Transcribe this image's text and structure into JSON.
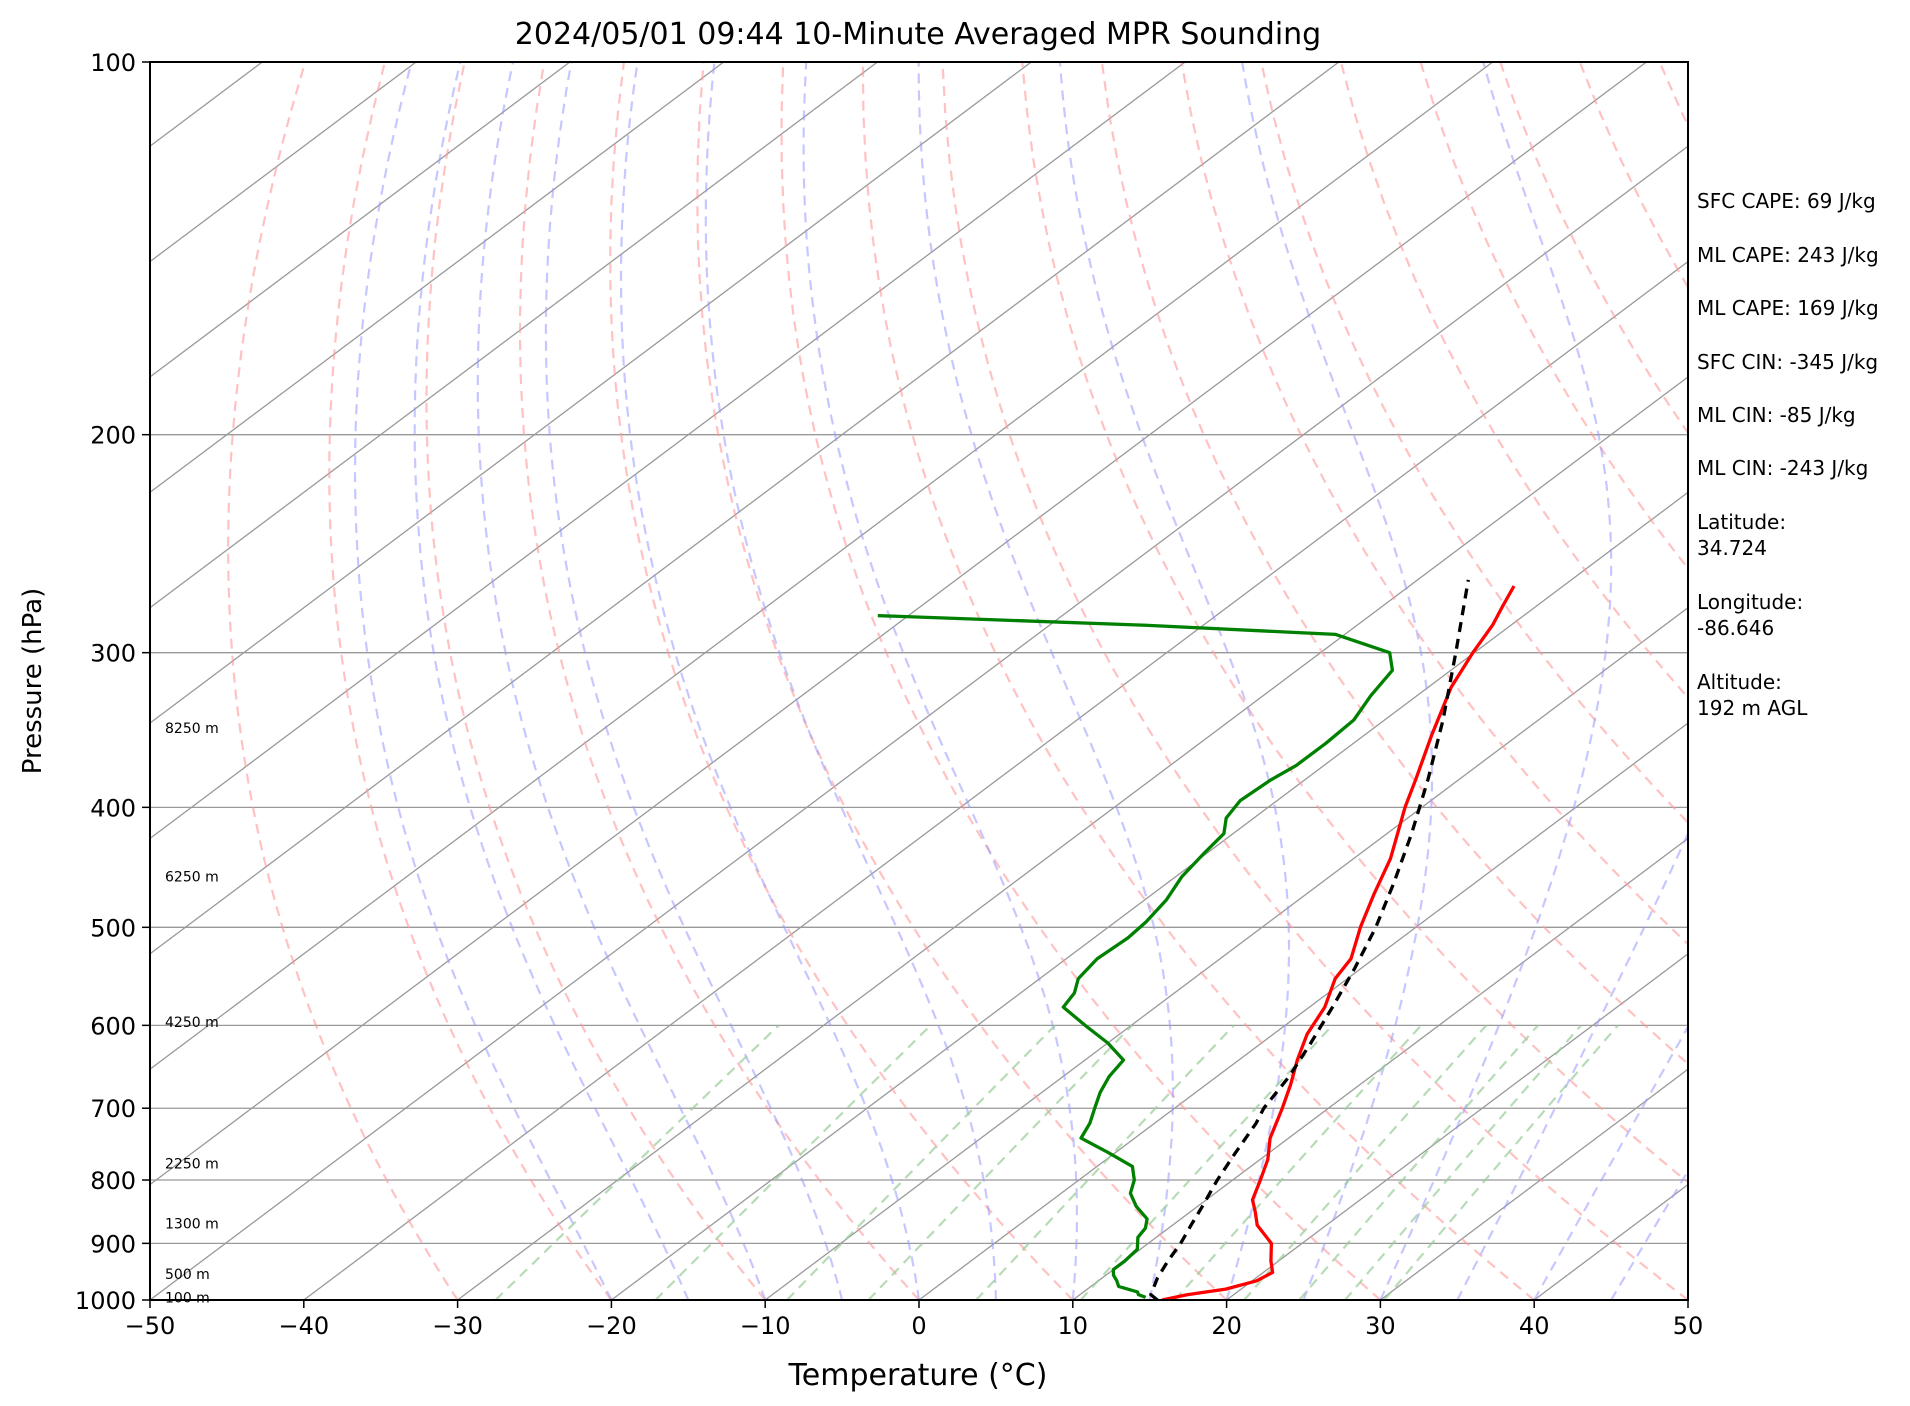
{
  "chart_data": {
    "type": "line",
    "title": "2024/05/01 09:44 10-Minute Averaged MPR Sounding",
    "xlabel": "Temperature (°C)",
    "ylabel": "Pressure (hPa)",
    "xlim": [
      -50,
      50
    ],
    "ylim": [
      1000,
      100
    ],
    "y_scale": "log",
    "skew": "skew-T",
    "x_ticks": [
      "−50",
      "−40",
      "−30",
      "−20",
      "−10",
      "0",
      "10",
      "20",
      "30",
      "40",
      "50"
    ],
    "y_ticks": [
      "100",
      "200",
      "300",
      "400",
      "500",
      "600",
      "700",
      "800",
      "900",
      "1000"
    ],
    "height_labels": [
      {
        "label": "8250 m",
        "p": 345
      },
      {
        "label": "6250 m",
        "p": 455
      },
      {
        "label": "4250 m",
        "p": 596
      },
      {
        "label": "2250 m",
        "p": 776
      },
      {
        "label": "1300 m",
        "p": 867
      },
      {
        "label": "500 m",
        "p": 953
      },
      {
        "label": "100 m",
        "p": 995
      }
    ],
    "colors": {
      "temperature": "#ff0000",
      "dewpoint": "#008000",
      "parcel": "#000000",
      "isotherms": "#999999",
      "dry_adiabats": "#ff9999",
      "moist_adiabats": "#9999ff",
      "mixing_ratio": "#99cc99",
      "isobars": "#999999"
    },
    "series": [
      {
        "points": [
          {
            "p": 1000,
            "t": 15.8
          },
          {
            "p": 990,
            "t": 17.0
          },
          {
            "p": 980,
            "t": 19.0
          },
          {
            "p": 965,
            "t": 20.3
          },
          {
            "p": 950,
            "t": 20.6
          },
          {
            "p": 930,
            "t": 19.5
          },
          {
            "p": 900,
            "t": 18.0
          },
          {
            "p": 870,
            "t": 15.5
          },
          {
            "p": 850,
            "t": 14.3
          },
          {
            "p": 830,
            "t": 13.0
          },
          {
            "p": 800,
            "t": 11.8
          },
          {
            "p": 770,
            "t": 10.5
          },
          {
            "p": 740,
            "t": 8.8
          },
          {
            "p": 700,
            "t": 7.0
          },
          {
            "p": 670,
            "t": 5.5
          },
          {
            "p": 640,
            "t": 3.8
          },
          {
            "p": 610,
            "t": 2.2
          },
          {
            "p": 580,
            "t": 1.0
          },
          {
            "p": 550,
            "t": -0.8
          },
          {
            "p": 530,
            "t": -1.5
          },
          {
            "p": 500,
            "t": -3.6
          },
          {
            "p": 470,
            "t": -5.6
          },
          {
            "p": 440,
            "t": -7.6
          },
          {
            "p": 400,
            "t": -11.1
          },
          {
            "p": 380,
            "t": -12.8
          },
          {
            "p": 350,
            "t": -15.6
          },
          {
            "p": 320,
            "t": -18.5
          },
          {
            "p": 300,
            "t": -20.1
          },
          {
            "p": 285,
            "t": -21.2
          },
          {
            "p": 275,
            "t": -22.2
          },
          {
            "p": 265,
            "t": -23.2
          }
        ]
      },
      {
        "points": [
          {
            "p": 995,
            "t": 14.5
          },
          {
            "p": 990,
            "t": 13.8
          },
          {
            "p": 985,
            "t": 13.5
          },
          {
            "p": 975,
            "t": 11.8
          },
          {
            "p": 965,
            "t": 11.2
          },
          {
            "p": 955,
            "t": 10.5
          },
          {
            "p": 945,
            "t": 10.0
          },
          {
            "p": 930,
            "t": 10.0
          },
          {
            "p": 910,
            "t": 9.8
          },
          {
            "p": 890,
            "t": 8.8
          },
          {
            "p": 875,
            "t": 8.5
          },
          {
            "p": 860,
            "t": 7.8
          },
          {
            "p": 840,
            "t": 6.0
          },
          {
            "p": 820,
            "t": 4.5
          },
          {
            "p": 800,
            "t": 3.6
          },
          {
            "p": 780,
            "t": 2.3
          },
          {
            "p": 760,
            "t": -0.5
          },
          {
            "p": 740,
            "t": -3.5
          },
          {
            "p": 720,
            "t": -4.2
          },
          {
            "p": 700,
            "t": -5.2
          },
          {
            "p": 680,
            "t": -6.2
          },
          {
            "p": 660,
            "t": -7.0
          },
          {
            "p": 640,
            "t": -7.5
          },
          {
            "p": 620,
            "t": -10.0
          },
          {
            "p": 600,
            "t": -13.0
          },
          {
            "p": 580,
            "t": -16.0
          },
          {
            "p": 565,
            "t": -16.5
          },
          {
            "p": 550,
            "t": -17.5
          },
          {
            "p": 530,
            "t": -18.0
          },
          {
            "p": 510,
            "t": -17.8
          },
          {
            "p": 495,
            "t": -18.0
          },
          {
            "p": 475,
            "t": -18.6
          },
          {
            "p": 455,
            "t": -19.6
          },
          {
            "p": 435,
            "t": -20.2
          },
          {
            "p": 420,
            "t": -20.6
          },
          {
            "p": 408,
            "t": -21.8
          },
          {
            "p": 395,
            "t": -22.4
          },
          {
            "p": 380,
            "t": -22.2
          },
          {
            "p": 370,
            "t": -21.8
          },
          {
            "p": 355,
            "t": -21.8
          },
          {
            "p": 340,
            "t": -22.0
          },
          {
            "p": 325,
            "t": -23.0
          },
          {
            "p": 310,
            "t": -23.8
          },
          {
            "p": 300,
            "t": -25.5
          },
          {
            "p": 290,
            "t": -30.6
          },
          {
            "p": 285,
            "t": -44.0
          },
          {
            "p": 280,
            "t": -62.0
          }
        ]
      },
      {
        "points": [
          {
            "p": 1000,
            "t": 15.5
          },
          {
            "p": 990,
            "t": 14.6
          },
          {
            "p": 960,
            "t": 13.6
          },
          {
            "p": 930,
            "t": 12.8
          },
          {
            "p": 900,
            "t": 12.1
          },
          {
            "p": 870,
            "t": 11.2
          },
          {
            "p": 840,
            "t": 10.3
          },
          {
            "p": 800,
            "t": 9.0
          },
          {
            "p": 760,
            "t": 7.8
          },
          {
            "p": 720,
            "t": 6.6
          },
          {
            "p": 700,
            "t": 5.8
          },
          {
            "p": 660,
            "t": 4.7
          },
          {
            "p": 620,
            "t": 3.2
          },
          {
            "p": 580,
            "t": 1.5
          },
          {
            "p": 540,
            "t": -0.4
          },
          {
            "p": 500,
            "t": -2.6
          },
          {
            "p": 460,
            "t": -5.3
          },
          {
            "p": 420,
            "t": -8.4
          },
          {
            "p": 380,
            "t": -12.0
          },
          {
            "p": 340,
            "t": -16.2
          },
          {
            "p": 300,
            "t": -21.2
          },
          {
            "p": 262,
            "t": -26.7
          }
        ]
      }
    ]
  },
  "annotations": {
    "sfc_cape": "SFC CAPE: 69 J/kg",
    "ml_cape_1": "ML CAPE: 243 J/kg",
    "ml_cape_2": "ML CAPE: 169 J/kg",
    "sfc_cin": "SFC CIN: -345 J/kg",
    "ml_cin_1": "ML CIN: -85 J/kg",
    "ml_cin_2": "ML CIN: -243 J/kg",
    "latitude": "Latitude:\n34.724",
    "longitude": "Longitude:\n-86.646",
    "altitude": "Altitude:\n192 m AGL"
  }
}
